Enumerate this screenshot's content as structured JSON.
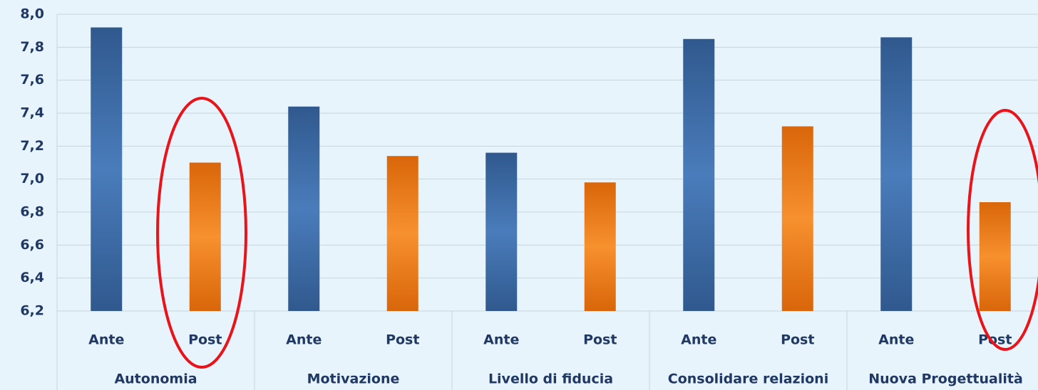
{
  "chart_data": {
    "type": "bar",
    "categories": [
      "Autonomia",
      "Motivazione",
      "Livello di fiducia",
      "Consolidare relazioni",
      "Nuova Progettualità"
    ],
    "series": [
      {
        "name": "Ante",
        "color": "#3f6fad",
        "values": [
          7.92,
          7.44,
          7.16,
          7.85,
          7.86
        ]
      },
      {
        "name": "Post",
        "color": "#f08a24",
        "values": [
          7.1,
          7.14,
          6.98,
          7.32,
          6.86
        ]
      }
    ],
    "ylim": [
      6.2,
      8.0
    ],
    "yticks": [
      {
        "value": 6.2,
        "label": "6,2"
      },
      {
        "value": 6.4,
        "label": "6,4"
      },
      {
        "value": 6.6,
        "label": "6,6"
      },
      {
        "value": 6.8,
        "label": "6,8"
      },
      {
        "value": 7.0,
        "label": "7,0"
      },
      {
        "value": 7.2,
        "label": "7,2"
      },
      {
        "value": 7.4,
        "label": "7,4"
      },
      {
        "value": 7.6,
        "label": "7,6"
      },
      {
        "value": 7.8,
        "label": "7,8"
      },
      {
        "value": 8.0,
        "label": "8,0"
      }
    ],
    "grid": true
  }
}
